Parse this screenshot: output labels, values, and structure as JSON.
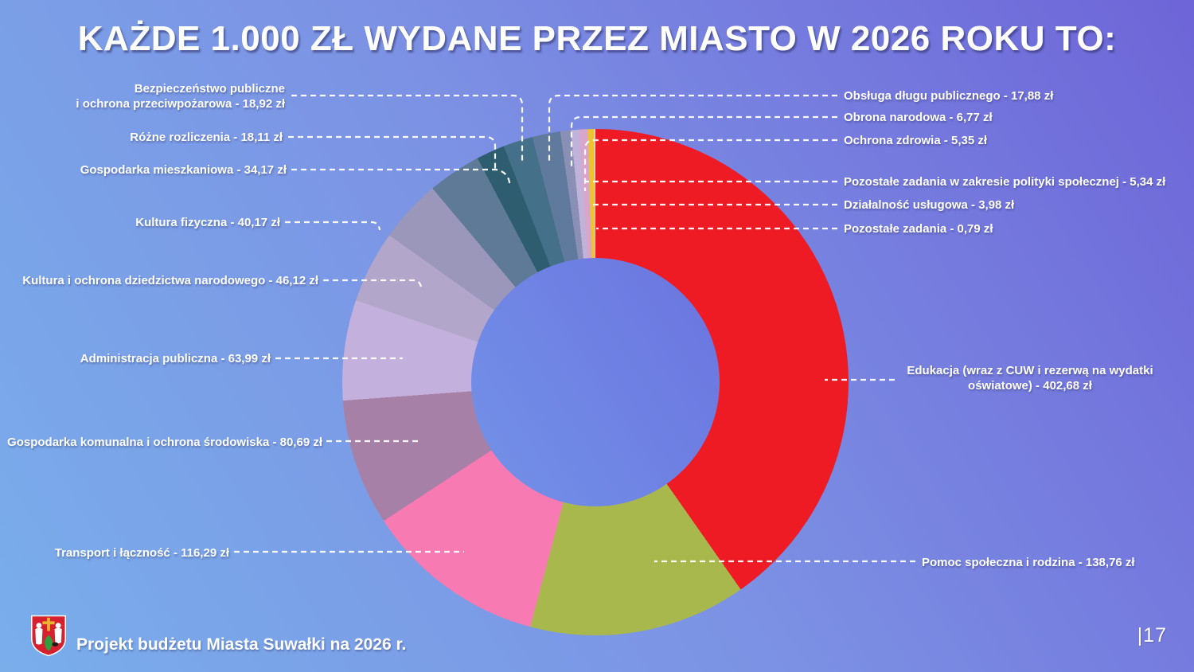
{
  "title": "KAŻDE 1.000 ZŁ WYDANE PRZEZ MIASTO W 2026 ROKU TO:",
  "footer": {
    "text": "Projekt budżetu Miasta Suwałki na 2026 r.",
    "page_number": "|17",
    "logo": "suwalki-coat-of-arms"
  },
  "chart_data": {
    "type": "pie",
    "variant": "donut",
    "title": "KAŻDE 1.000 ZŁ WYDANE PRZEZ MIASTO W 2026 ROKU TO:",
    "unit": "zł",
    "total": 1000,
    "order": "clockwise-from-top",
    "legend_position": "callout-labels",
    "slices": [
      {
        "label": "Edukacja (wraz z CUW i rezerwą na wydatki oświatowe)",
        "value": 402.68,
        "display": "Edukacja (wraz z CUW i rezerwą na wydatki oświatowe) - 402,68 zł",
        "display_lines": [
          "Edukacja (wraz z CUW i rezerwą na wydatki",
          "oświatowe) - 402,68 zł"
        ],
        "color": "#EE1B24"
      },
      {
        "label": "Pomoc społeczna i rodzina",
        "value": 138.76,
        "display": "Pomoc społeczna i rodzina - 138,76 zł",
        "color": "#A9B84C"
      },
      {
        "label": "Transport i łączność",
        "value": 116.29,
        "display": "Transport i łączność - 116,29 zł",
        "color": "#F87AB2"
      },
      {
        "label": "Gospodarka komunalna i ochrona środowiska",
        "value": 80.69,
        "display": "Gospodarka komunalna i ochrona środowiska - 80,69 zł",
        "color": "#A780A8"
      },
      {
        "label": "Administracja publiczna",
        "value": 63.99,
        "display": "Administracja publiczna - 63,99 zł",
        "color": "#C4B0DC"
      },
      {
        "label": "Kultura i ochrona dziedzictwa narodowego",
        "value": 46.12,
        "display": "Kultura i ochrona dziedzictwa narodowego - 46,12 zł",
        "color": "#B2A6CA"
      },
      {
        "label": "Kultura fizyczna",
        "value": 40.17,
        "display": "Kultura fizyczna - 40,17 zł",
        "color": "#9B97BA"
      },
      {
        "label": "Gospodarka mieszkaniowa",
        "value": 34.17,
        "display": "Gospodarka mieszkaniowa - 34,17 zł",
        "color": "#5E7A96"
      },
      {
        "label": "Różne rozliczenia",
        "value": 18.11,
        "display": "Różne rozliczenia - 18,11 zł",
        "color": "#2E5D70"
      },
      {
        "label": "Bezpieczeństwo publiczne i ochrona przeciwpożarowa",
        "value": 18.92,
        "display": "Bezpieczeństwo publiczne i ochrona przeciwpożarowa - 18,92 zł",
        "display_lines": [
          "Bezpieczeństwo publiczne",
          "i ochrona przeciwpożarowa - 18,92 zł"
        ],
        "color": "#44708A"
      },
      {
        "label": "Obsługa długu publicznego",
        "value": 17.88,
        "display": "Obsługa długu publicznego - 17,88 zł",
        "color": "#5F7A9D"
      },
      {
        "label": "Obrona narodowa",
        "value": 6.77,
        "display": "Obrona narodowa - 6,77 zł",
        "color": "#8A8FB5"
      },
      {
        "label": "Ochrona zdrowia",
        "value": 5.35,
        "display": "Ochrona zdrowia - 5,35 zł",
        "color": "#C0B2D8"
      },
      {
        "label": "Pozostałe zadania w zakresie polityki społecznej",
        "value": 5.34,
        "display": "Pozostałe zadania w zakresie polityki społecznej - 5,34 zł",
        "color": "#D9A6CB"
      },
      {
        "label": "Działalność usługowa",
        "value": 3.98,
        "display": "Działalność usługowa - 3,98 zł",
        "color": "#EDC430"
      },
      {
        "label": "Pozostałe zadania",
        "value": 0.79,
        "display": "Pozostałe zadania - 0,79 zł",
        "color": "#F2D3E3"
      }
    ]
  }
}
